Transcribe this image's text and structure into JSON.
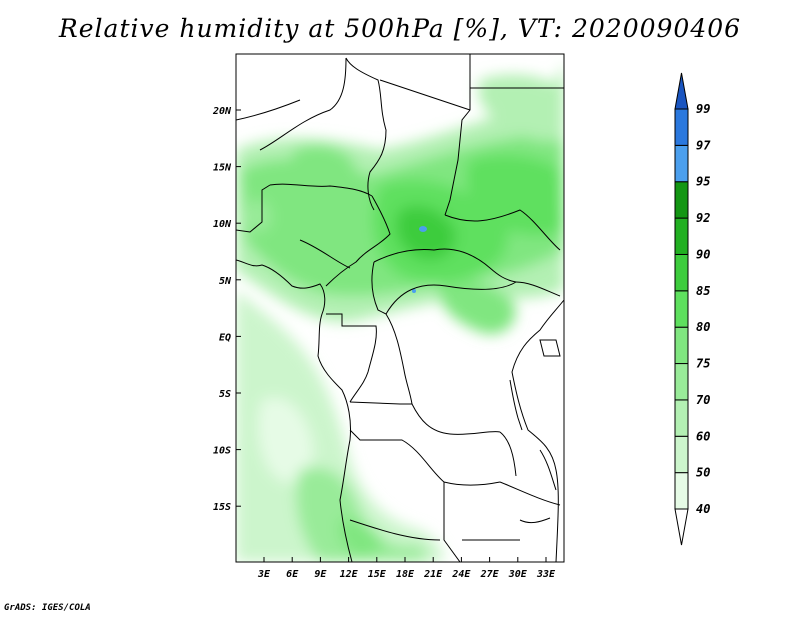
{
  "title": "Relative humidity at 500hPa [%], VT: 2020090406",
  "credit": "GrADS: IGES/COLA",
  "map": {
    "lon_ticks": [
      "3E",
      "6E",
      "9E",
      "12E",
      "15E",
      "18E",
      "21E",
      "24E",
      "27E",
      "30E",
      "33E"
    ],
    "lat_ticks": [
      "20N",
      "15N",
      "10N",
      "5N",
      "EQ",
      "5S",
      "10S",
      "15S"
    ]
  },
  "legend": {
    "levels": [
      "40",
      "50",
      "60",
      "70",
      "75",
      "80",
      "85",
      "90",
      "92",
      "95",
      "97",
      "99"
    ],
    "colors": [
      "#ffffff",
      "#e6fbe6",
      "#ccf5cc",
      "#b3f0b3",
      "#99eb99",
      "#80e680",
      "#5ee05e",
      "#3dcc3d",
      "#22b022",
      "#139613",
      "#4b9fee",
      "#2a78de",
      "#1a55c0"
    ]
  }
}
